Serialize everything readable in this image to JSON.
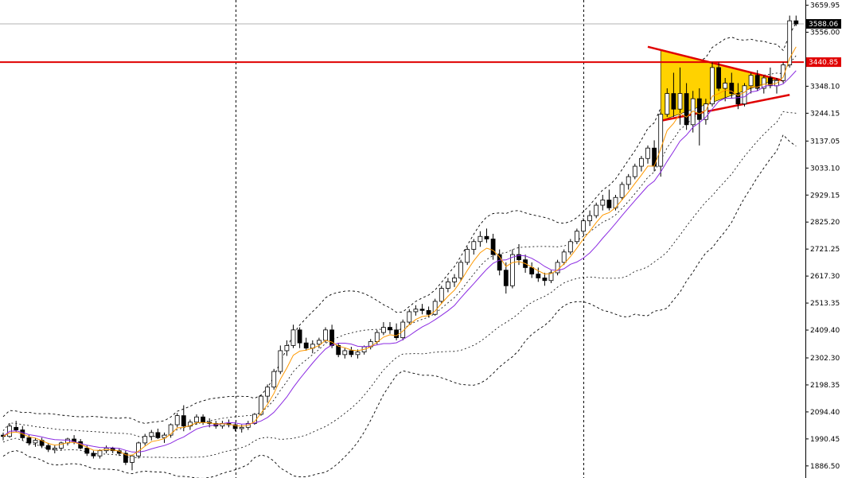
{
  "chart_data": {
    "type": "candlestick",
    "price_axis": {
      "ylim": [
        1840,
        3680
      ],
      "tick_labels": [
        "3659.95",
        "3556.00",
        "3348.10",
        "3244.15",
        "3137.05",
        "3033.10",
        "2929.15",
        "2825.20",
        "2721.25",
        "2617.30",
        "2513.35",
        "2409.40",
        "2302.30",
        "2198.35",
        "2094.40",
        "1990.45",
        "1886.50"
      ],
      "tick_values": [
        3659.95,
        3556.0,
        3348.1,
        3244.15,
        3137.05,
        3033.1,
        2929.15,
        2825.2,
        2721.25,
        2617.3,
        2513.35,
        2409.4,
        2302.3,
        2198.35,
        2094.4,
        1990.45,
        1886.5
      ]
    },
    "badges": [
      {
        "label": "3588.06",
        "value": 3588.06,
        "style": "dark"
      },
      {
        "label": "3440.85",
        "value": 3440.85,
        "style": "red"
      }
    ],
    "current_price": 3588.06,
    "resistance_level": 3440.85,
    "candles": [
      [
        2005,
        2015,
        1985,
        2000
      ],
      [
        2000,
        2050,
        1995,
        2040
      ],
      [
        2035,
        2060,
        2015,
        2025
      ],
      [
        2025,
        2040,
        1985,
        1995
      ],
      [
        1995,
        2005,
        1965,
        1975
      ],
      [
        1975,
        1995,
        1960,
        1985
      ],
      [
        1985,
        1995,
        1955,
        1965
      ],
      [
        1965,
        1975,
        1940,
        1950
      ],
      [
        1950,
        1965,
        1935,
        1955
      ],
      [
        1955,
        1980,
        1945,
        1975
      ],
      [
        1975,
        1995,
        1965,
        1990
      ],
      [
        1990,
        2005,
        1970,
        1980
      ],
      [
        1980,
        1990,
        1950,
        1955
      ],
      [
        1955,
        1965,
        1925,
        1935
      ],
      [
        1935,
        1945,
        1915,
        1925
      ],
      [
        1925,
        1950,
        1915,
        1945
      ],
      [
        1945,
        1965,
        1935,
        1955
      ],
      [
        1955,
        1960,
        1935,
        1945
      ],
      [
        1945,
        1955,
        1925,
        1935
      ],
      [
        1935,
        1945,
        1890,
        1900
      ],
      [
        1900,
        1930,
        1870,
        1925
      ],
      [
        1925,
        1980,
        1915,
        1975
      ],
      [
        1975,
        2010,
        1965,
        2000
      ],
      [
        2000,
        2025,
        1985,
        2015
      ],
      [
        2015,
        2030,
        1990,
        1995
      ],
      [
        1995,
        2015,
        1975,
        2005
      ],
      [
        2005,
        2050,
        1995,
        2045
      ],
      [
        2045,
        2090,
        2035,
        2080
      ],
      [
        2080,
        2120,
        2020,
        2040
      ],
      [
        2040,
        2065,
        2025,
        2055
      ],
      [
        2055,
        2085,
        2045,
        2075
      ],
      [
        2075,
        2085,
        2045,
        2055
      ],
      [
        2055,
        2070,
        2035,
        2050
      ],
      [
        2050,
        2060,
        2030,
        2040
      ],
      [
        2040,
        2060,
        2030,
        2050
      ],
      [
        2050,
        2065,
        2035,
        2045
      ],
      [
        2045,
        2055,
        2020,
        2030
      ],
      [
        2030,
        2045,
        2015,
        2035
      ],
      [
        2035,
        2060,
        2025,
        2050
      ],
      [
        2050,
        2090,
        2045,
        2085
      ],
      [
        2085,
        2160,
        2080,
        2155
      ],
      [
        2155,
        2200,
        2130,
        2190
      ],
      [
        2190,
        2260,
        2180,
        2250
      ],
      [
        2250,
        2350,
        2240,
        2330
      ],
      [
        2330,
        2370,
        2310,
        2350
      ],
      [
        2350,
        2430,
        2340,
        2410
      ],
      [
        2410,
        2420,
        2340,
        2360
      ],
      [
        2360,
        2380,
        2330,
        2340
      ],
      [
        2340,
        2370,
        2320,
        2355
      ],
      [
        2355,
        2380,
        2340,
        2370
      ],
      [
        2370,
        2420,
        2360,
        2410
      ],
      [
        2410,
        2430,
        2340,
        2350
      ],
      [
        2350,
        2360,
        2305,
        2315
      ],
      [
        2315,
        2340,
        2300,
        2330
      ],
      [
        2330,
        2345,
        2305,
        2315
      ],
      [
        2315,
        2335,
        2300,
        2325
      ],
      [
        2325,
        2350,
        2315,
        2345
      ],
      [
        2345,
        2375,
        2335,
        2365
      ],
      [
        2365,
        2410,
        2355,
        2400
      ],
      [
        2400,
        2440,
        2390,
        2420
      ],
      [
        2420,
        2440,
        2395,
        2410
      ],
      [
        2410,
        2435,
        2370,
        2380
      ],
      [
        2380,
        2450,
        2370,
        2440
      ],
      [
        2440,
        2490,
        2430,
        2480
      ],
      [
        2480,
        2505,
        2465,
        2490
      ],
      [
        2490,
        2510,
        2470,
        2485
      ],
      [
        2485,
        2500,
        2460,
        2470
      ],
      [
        2470,
        2530,
        2465,
        2520
      ],
      [
        2520,
        2580,
        2510,
        2570
      ],
      [
        2570,
        2610,
        2555,
        2595
      ],
      [
        2595,
        2625,
        2575,
        2610
      ],
      [
        2610,
        2680,
        2600,
        2670
      ],
      [
        2670,
        2730,
        2660,
        2720
      ],
      [
        2720,
        2760,
        2700,
        2750
      ],
      [
        2750,
        2790,
        2730,
        2770
      ],
      [
        2770,
        2800,
        2745,
        2760
      ],
      [
        2760,
        2780,
        2680,
        2700
      ],
      [
        2700,
        2720,
        2620,
        2640
      ],
      [
        2640,
        2670,
        2550,
        2580
      ],
      [
        2580,
        2720,
        2570,
        2700
      ],
      [
        2700,
        2740,
        2660,
        2680
      ],
      [
        2680,
        2700,
        2630,
        2650
      ],
      [
        2650,
        2670,
        2610,
        2625
      ],
      [
        2625,
        2650,
        2595,
        2610
      ],
      [
        2610,
        2630,
        2580,
        2600
      ],
      [
        2600,
        2640,
        2590,
        2630
      ],
      [
        2630,
        2680,
        2620,
        2670
      ],
      [
        2670,
        2720,
        2660,
        2710
      ],
      [
        2710,
        2760,
        2700,
        2750
      ],
      [
        2750,
        2800,
        2740,
        2790
      ],
      [
        2790,
        2840,
        2780,
        2830
      ],
      [
        2830,
        2870,
        2810,
        2850
      ],
      [
        2850,
        2900,
        2840,
        2890
      ],
      [
        2890,
        2930,
        2870,
        2910
      ],
      [
        2910,
        2950,
        2870,
        2880
      ],
      [
        2880,
        2930,
        2870,
        2920
      ],
      [
        2920,
        2980,
        2910,
        2970
      ],
      [
        2970,
        3010,
        2950,
        3000
      ],
      [
        3000,
        3050,
        2990,
        3040
      ],
      [
        3040,
        3080,
        3020,
        3070
      ],
      [
        3070,
        3120,
        3050,
        3110
      ],
      [
        3110,
        3140,
        3020,
        3040
      ],
      [
        3040,
        3250,
        3000,
        3240
      ],
      [
        3240,
        3340,
        3230,
        3320
      ],
      [
        3320,
        3400,
        3230,
        3260
      ],
      [
        3260,
        3420,
        3200,
        3320
      ],
      [
        3320,
        3360,
        3180,
        3200
      ],
      [
        3200,
        3330,
        3170,
        3300
      ],
      [
        3300,
        3340,
        3120,
        3220
      ],
      [
        3220,
        3300,
        3200,
        3280
      ],
      [
        3280,
        3440,
        3270,
        3420
      ],
      [
        3420,
        3440,
        3330,
        3340
      ],
      [
        3340,
        3380,
        3290,
        3360
      ],
      [
        3360,
        3400,
        3300,
        3320
      ],
      [
        3320,
        3360,
        3260,
        3280
      ],
      [
        3280,
        3360,
        3270,
        3350
      ],
      [
        3350,
        3400,
        3320,
        3390
      ],
      [
        3390,
        3410,
        3330,
        3340
      ],
      [
        3340,
        3390,
        3320,
        3380
      ],
      [
        3380,
        3420,
        3340,
        3350
      ],
      [
        3350,
        3380,
        3320,
        3370
      ],
      [
        3370,
        3440,
        3360,
        3430
      ],
      [
        3430,
        3620,
        3420,
        3600
      ],
      [
        3600,
        3620,
        3580,
        3588.06
      ]
    ],
    "dotted_separator_candles": [
      36,
      90
    ]
  }
}
